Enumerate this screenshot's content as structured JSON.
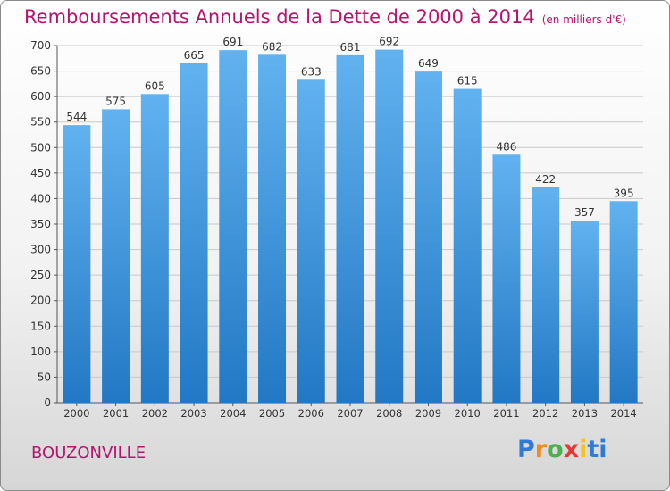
{
  "header": {
    "title": "Remboursements Annuels de la Dette de 2000 à 2014",
    "unit": "(en milliers d'€)"
  },
  "footer": {
    "town": "BOUZONVILLE",
    "logo_letters": [
      "P",
      "r",
      "o",
      "x",
      "i",
      "t",
      "i"
    ]
  },
  "colors": {
    "title": "#b5146e",
    "bar_top": "#61b2ef",
    "bar_bottom": "#2278c4",
    "grid": "#c8c8c8"
  },
  "chart_data": {
    "type": "bar",
    "title": "Remboursements Annuels de la Dette de 2000 à 2014",
    "xlabel": "",
    "ylabel": "",
    "categories": [
      "2000",
      "2001",
      "2002",
      "2003",
      "2004",
      "2005",
      "2006",
      "2007",
      "2008",
      "2009",
      "2010",
      "2011",
      "2012",
      "2013",
      "2014"
    ],
    "values": [
      544,
      575,
      605,
      665,
      691,
      682,
      633,
      681,
      692,
      649,
      615,
      486,
      422,
      357,
      395
    ],
    "ylim": [
      0,
      700
    ],
    "yticks": [
      0,
      50,
      100,
      150,
      200,
      250,
      300,
      350,
      400,
      450,
      500,
      550,
      600,
      650,
      700
    ],
    "grid": true,
    "data_labels": true
  }
}
